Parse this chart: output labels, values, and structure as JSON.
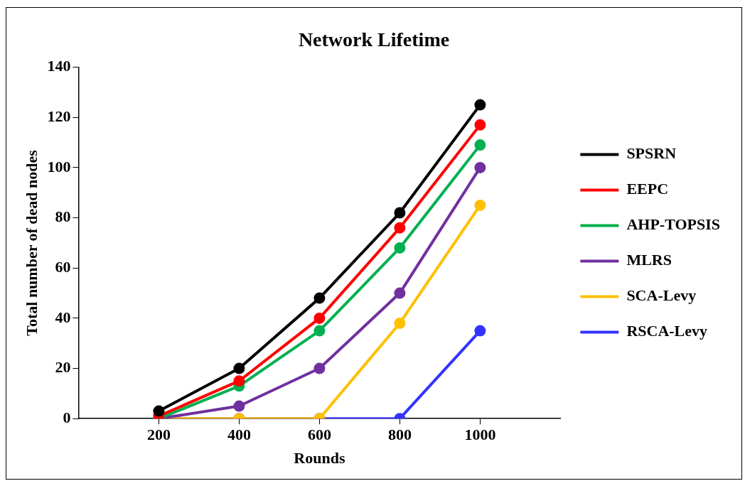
{
  "chart_data": {
    "type": "line",
    "title": "Network Lifetime",
    "xlabel": "Rounds",
    "ylabel": "Total number of dead nodes",
    "x": [
      200,
      400,
      600,
      800,
      1000
    ],
    "xlim": [
      0,
      1200
    ],
    "xticks": [
      200,
      400,
      600,
      800,
      1000
    ],
    "ylim": [
      0,
      140
    ],
    "yticks": [
      0,
      20,
      40,
      60,
      80,
      100,
      120,
      140
    ],
    "grid": false,
    "legend": "right",
    "marker": "circle",
    "line_style": "solid",
    "series": [
      {
        "name": "SPSRN",
        "color": "#000000",
        "values": [
          3,
          20,
          48,
          82,
          125
        ]
      },
      {
        "name": "EEPC",
        "color": "#ff0000",
        "values": [
          1,
          15,
          40,
          76,
          117
        ]
      },
      {
        "name": "AHP-TOPSIS",
        "color": "#00b050",
        "values": [
          0,
          13,
          35,
          68,
          109
        ]
      },
      {
        "name": "MLRS",
        "color": "#7030a0",
        "values": [
          0,
          5,
          20,
          50,
          100
        ]
      },
      {
        "name": "SCA-Levy",
        "color": "#ffc000",
        "values": [
          0,
          0,
          0,
          38,
          85
        ]
      },
      {
        "name": "RSCA-Levy",
        "color": "#3333ff",
        "values": [
          0,
          0,
          0,
          0,
          35
        ]
      }
    ]
  }
}
